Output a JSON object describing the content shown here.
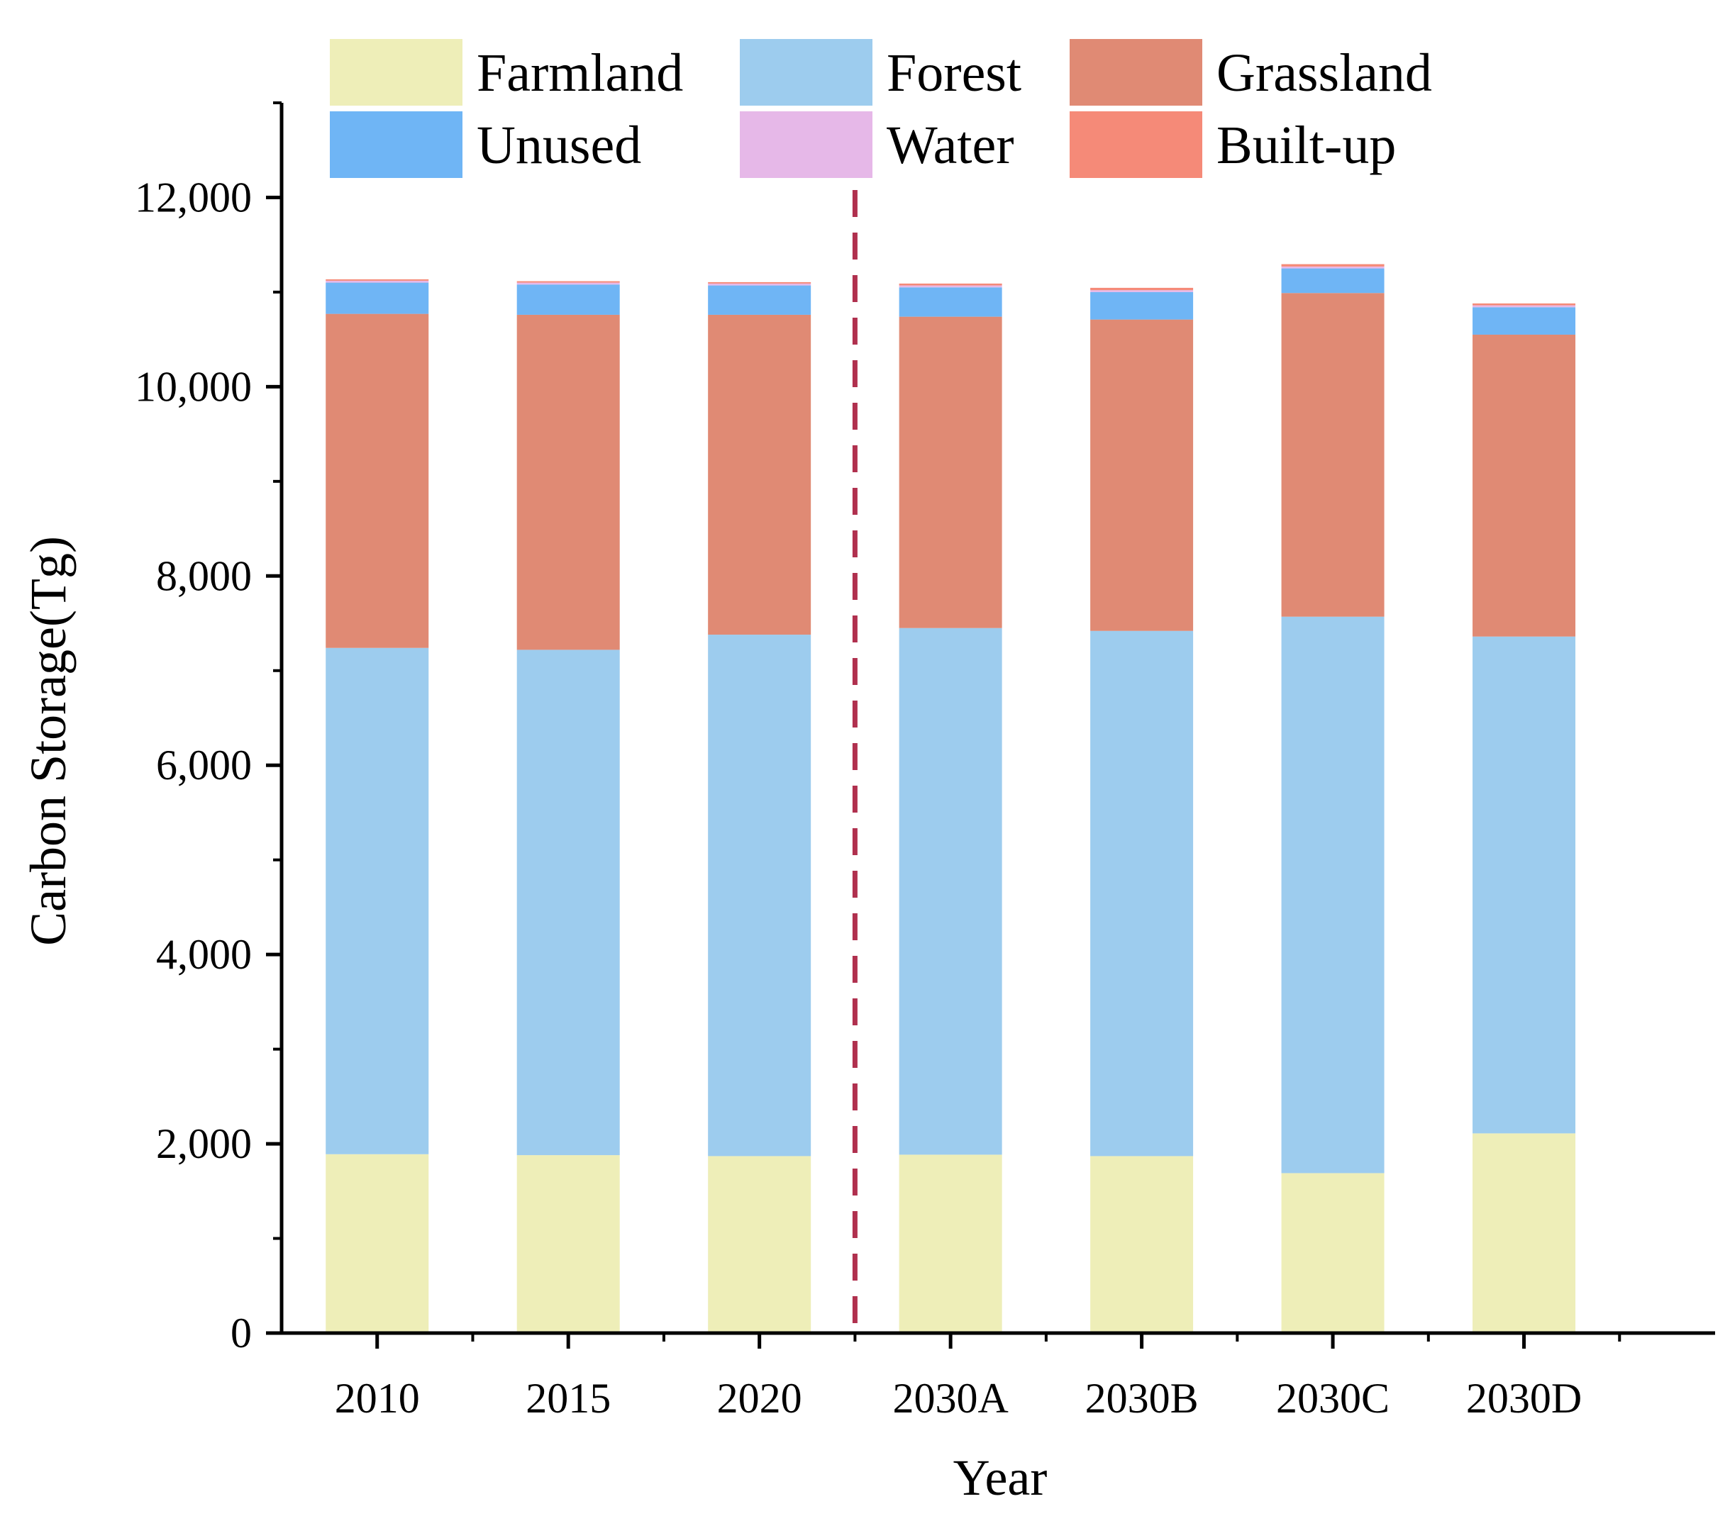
{
  "chart_data": {
    "type": "bar",
    "stacked": true,
    "xlabel": "Year",
    "ylabel": "Carbon Storage(Tg)",
    "ylim": [
      0,
      13000
    ],
    "yticks": [
      0,
      2000,
      4000,
      6000,
      8000,
      10000,
      12000
    ],
    "ytick_labels": [
      "0",
      "2,000",
      "4,000",
      "6,000",
      "8,000",
      "10,000",
      "12,000"
    ],
    "categories": [
      "2010",
      "2015",
      "2020",
      "2030A",
      "2030B",
      "2030C",
      "2030D"
    ],
    "divider_after_category": "2020",
    "legend_position": "top",
    "series": [
      {
        "name": "Farmland",
        "color": "#EEEEB8",
        "values": [
          1890,
          1880,
          1870,
          1885,
          1870,
          1690,
          2110
        ]
      },
      {
        "name": "Forest",
        "color": "#9DCCEE",
        "values": [
          5350,
          5340,
          5510,
          5565,
          5550,
          5880,
          5250
        ]
      },
      {
        "name": "Grassland",
        "color": "#E08A74",
        "values": [
          3530,
          3540,
          3380,
          3290,
          3290,
          3420,
          3190
        ]
      },
      {
        "name": "Unused",
        "color": "#6FB5F5",
        "values": [
          330,
          320,
          310,
          310,
          290,
          260,
          290
        ]
      },
      {
        "name": "Water",
        "color": "#E6B8E8",
        "values": [
          20,
          20,
          20,
          20,
          20,
          20,
          20
        ]
      },
      {
        "name": "Built-up",
        "color": "#F58A78",
        "values": [
          15,
          15,
          15,
          20,
          25,
          25,
          20
        ]
      }
    ]
  },
  "colors": {
    "divider": "#B0304E",
    "axis": "#000000"
  }
}
